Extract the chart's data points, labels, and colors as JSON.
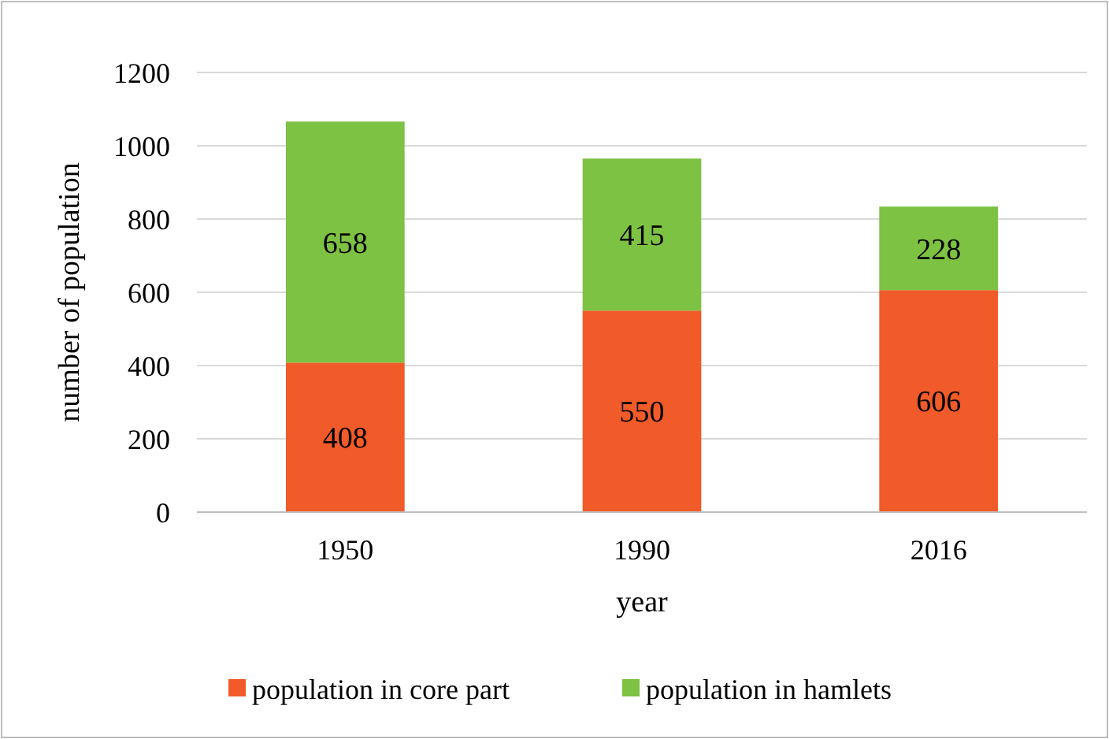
{
  "chart_data": {
    "type": "bar",
    "stacked": true,
    "categories": [
      "1950",
      "1990",
      "2016"
    ],
    "series": [
      {
        "name": "population in core part",
        "color": "#f15a29",
        "values": [
          408,
          550,
          606
        ]
      },
      {
        "name": "population in hamlets",
        "color": "#7dc242",
        "values": [
          658,
          415,
          228
        ]
      }
    ],
    "xlabel": "year",
    "ylabel": "number of population",
    "ylim": [
      0,
      1200
    ],
    "yticks": [
      0,
      200,
      400,
      600,
      800,
      1000,
      1200
    ],
    "grid": "y",
    "legend": "bottom",
    "data_labels": true
  }
}
